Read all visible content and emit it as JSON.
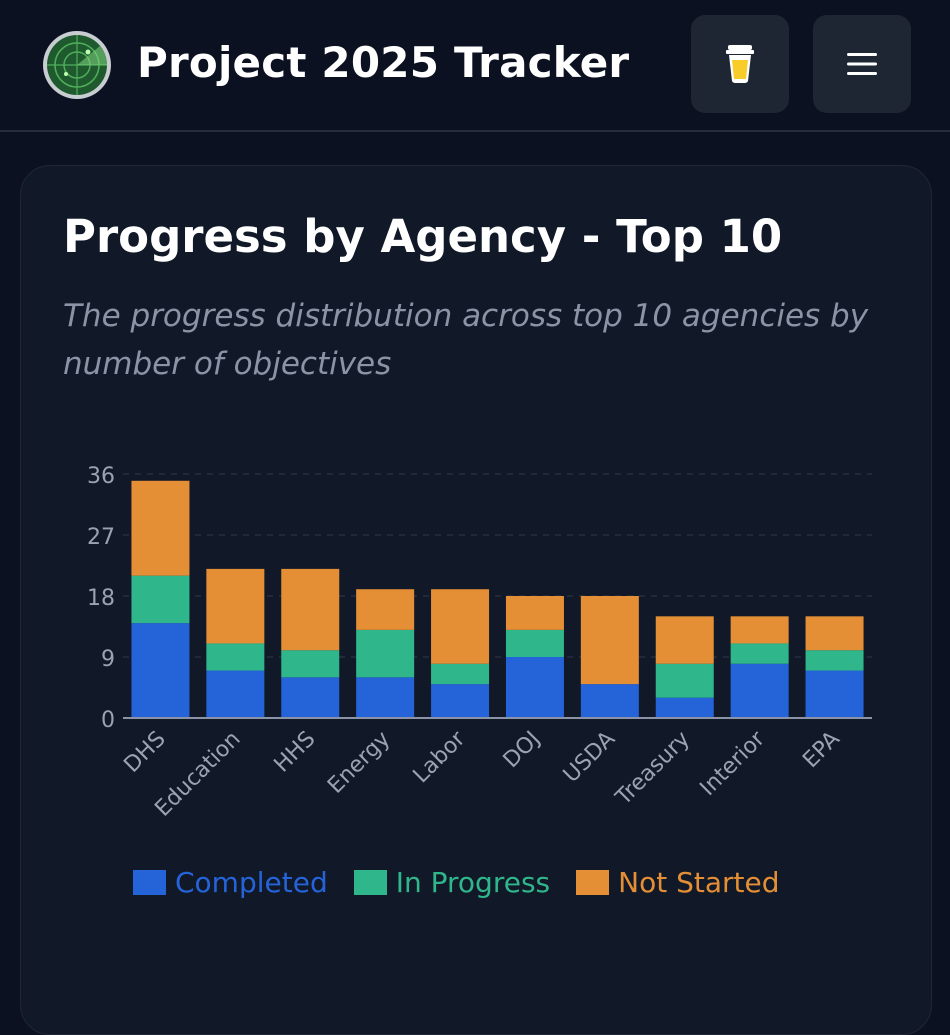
{
  "header": {
    "title": "Project 2025 Tracker",
    "logo_icon": "radar-icon",
    "coffee_icon": "coffee-cup-icon",
    "menu_icon": "hamburger-menu-icon"
  },
  "card": {
    "title": "Progress by Agency - Top 10",
    "subtitle": "The progress distribution across top 10 agencies by number of objectives"
  },
  "colors": {
    "completed": "#2563d9",
    "in_progress": "#2fb68a",
    "not_started": "#e48f35",
    "background": "#0b1120",
    "card": "#111827"
  },
  "chart_data": {
    "type": "bar",
    "stacked": true,
    "categories": [
      "DHS",
      "Education",
      "HHS",
      "Energy",
      "Labor",
      "DOJ",
      "USDA",
      "Treasury",
      "Interior",
      "EPA"
    ],
    "series": [
      {
        "name": "Completed",
        "values": [
          14,
          7,
          6,
          6,
          5,
          9,
          5,
          3,
          8,
          7
        ]
      },
      {
        "name": "In Progress",
        "values": [
          7,
          4,
          4,
          7,
          3,
          4,
          0,
          5,
          3,
          3
        ]
      },
      {
        "name": "Not Started",
        "values": [
          14,
          11,
          12,
          6,
          11,
          5,
          13,
          7,
          4,
          5
        ]
      }
    ],
    "yticks": [
      "0",
      "9",
      "18",
      "27",
      "36"
    ],
    "ylim": [
      0,
      36
    ],
    "grid": "horizontal dashed",
    "legend": "bottom"
  }
}
